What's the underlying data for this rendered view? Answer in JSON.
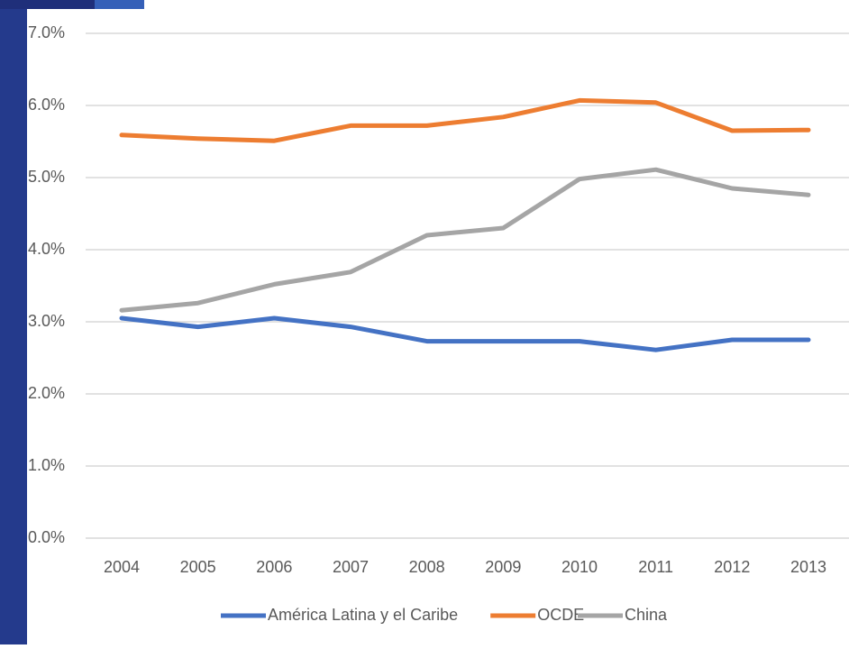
{
  "chart_data": {
    "type": "line",
    "categories": [
      "2004",
      "2005",
      "2006",
      "2007",
      "2008",
      "2009",
      "2010",
      "2011",
      "2012",
      "2013"
    ],
    "series": [
      {
        "name": "América Latina y el Caribe",
        "color": "#4472c4",
        "values": [
          3.05,
          2.93,
          3.05,
          2.93,
          2.73,
          2.73,
          2.73,
          2.61,
          2.75,
          2.75
        ]
      },
      {
        "name": "OCDE",
        "color": "#ed7d31",
        "values": [
          5.59,
          5.54,
          5.51,
          5.72,
          5.72,
          5.84,
          6.07,
          6.04,
          5.65,
          5.66
        ]
      },
      {
        "name": "China",
        "color": "#a5a5a5",
        "values": [
          3.16,
          3.26,
          3.52,
          3.69,
          4.2,
          4.3,
          4.98,
          5.11,
          4.85,
          4.76
        ]
      }
    ],
    "ylim": [
      0,
      7
    ],
    "yticks": [
      {
        "value": 0,
        "label": "0.0%"
      },
      {
        "value": 1,
        "label": "1.0%"
      },
      {
        "value": 2,
        "label": "2.0%"
      },
      {
        "value": 3,
        "label": "3.0%"
      },
      {
        "value": 4,
        "label": "4.0%"
      },
      {
        "value": 5,
        "label": "5.0%"
      },
      {
        "value": 6,
        "label": "6.0%"
      },
      {
        "value": 7,
        "label": "7.0%"
      }
    ],
    "grid": true,
    "legend": "bottom"
  }
}
